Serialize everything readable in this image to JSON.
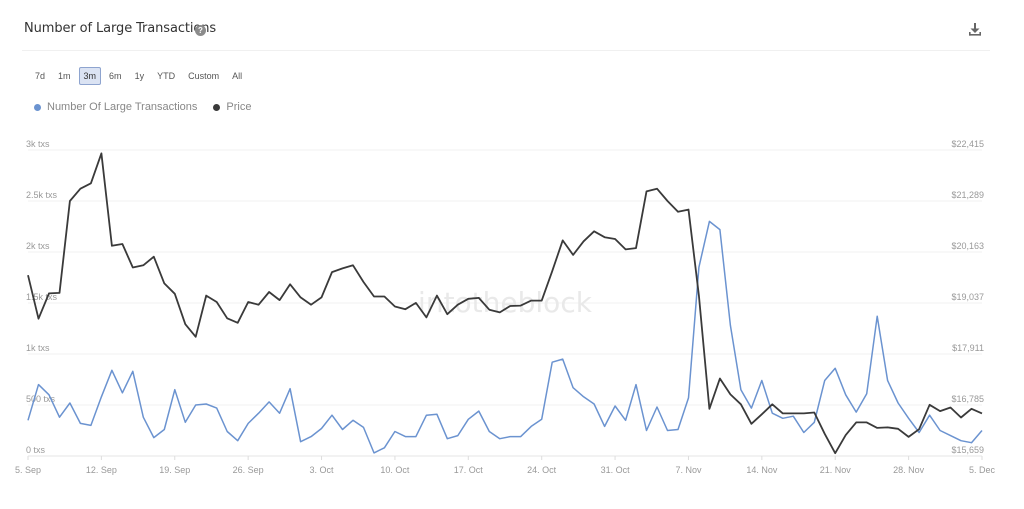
{
  "header": {
    "title": "Number of Large Transactions",
    "help_glyph": "?",
    "download_icon": "download-icon"
  },
  "ranges": {
    "items": [
      "7d",
      "1m",
      "3m",
      "6m",
      "1y",
      "YTD",
      "Custom",
      "All"
    ],
    "active": "3m"
  },
  "legend": [
    {
      "label": "Number Of Large Transactions",
      "color": "#6b93d0"
    },
    {
      "label": "Price",
      "color": "#3a3a3a"
    }
  ],
  "watermark": "intotheblock",
  "chart_data": {
    "type": "line",
    "title": "Number of Large Transactions",
    "x_tick_labels": [
      "5. Sep",
      "12. Sep",
      "19. Sep",
      "26. Sep",
      "3. Oct",
      "10. Oct",
      "17. Oct",
      "24. Oct",
      "31. Oct",
      "7. Nov",
      "14. Nov",
      "21. Nov",
      "28. Nov",
      "5. Dec"
    ],
    "y_left": {
      "ticks": [
        "0 txs",
        "500 txs",
        "1k txs",
        "1.5k txs",
        "2k txs",
        "2.5k txs",
        "3k txs"
      ],
      "range": [
        0,
        3000
      ]
    },
    "y_right": {
      "ticks": [
        "$15,659",
        "$16,785",
        "$17,911",
        "$19,037",
        "$20,163",
        "$21,289",
        "$22,415"
      ],
      "range": [
        15659,
        22415
      ]
    },
    "grid": true,
    "legend_position": "top-left",
    "series": [
      {
        "name": "Number Of Large Transactions",
        "axis": "left",
        "color": "#6b93d0",
        "values": [
          350,
          700,
          600,
          380,
          520,
          320,
          300,
          580,
          840,
          620,
          830,
          380,
          180,
          260,
          650,
          330,
          500,
          510,
          470,
          240,
          150,
          320,
          420,
          530,
          420,
          660,
          140,
          190,
          270,
          400,
          260,
          350,
          280,
          30,
          80,
          240,
          190,
          190,
          400,
          410,
          170,
          200,
          360,
          440,
          240,
          170,
          190,
          190,
          290,
          360,
          920,
          950,
          670,
          580,
          510,
          290,
          490,
          350,
          700,
          250,
          480,
          250,
          260,
          570,
          1850,
          2300,
          2220,
          1280,
          650,
          470,
          740,
          420,
          370,
          390,
          230,
          330,
          740,
          860,
          600,
          430,
          610,
          1370,
          740,
          520,
          370,
          230,
          400,
          250,
          200,
          150,
          130,
          250
        ]
      },
      {
        "name": "Price",
        "axis": "right",
        "color": "#3a3a3a",
        "values": [
          19650,
          18690,
          19250,
          19260,
          21290,
          21560,
          21680,
          22340,
          20300,
          20340,
          19820,
          19870,
          20060,
          19470,
          19240,
          18570,
          18290,
          19200,
          19060,
          18700,
          18600,
          19060,
          19000,
          19280,
          19100,
          19450,
          19160,
          19000,
          19160,
          19720,
          19800,
          19870,
          19500,
          19180,
          19180,
          18960,
          18900,
          19040,
          18720,
          19200,
          18790,
          19000,
          19130,
          19150,
          18890,
          18830,
          18970,
          18980,
          19090,
          19090,
          19740,
          20420,
          20100,
          20400,
          20620,
          20490,
          20450,
          20220,
          20250,
          21500,
          21560,
          21290,
          21050,
          21100,
          19200,
          16700,
          17370,
          17020,
          16800,
          16370,
          16580,
          16800,
          16600,
          16600,
          16600,
          16620,
          16150,
          15720,
          16120,
          16400,
          16400,
          16280,
          16290,
          16260,
          16080,
          16250,
          16790,
          16650,
          16730,
          16510,
          16700,
          16600
        ]
      }
    ]
  }
}
